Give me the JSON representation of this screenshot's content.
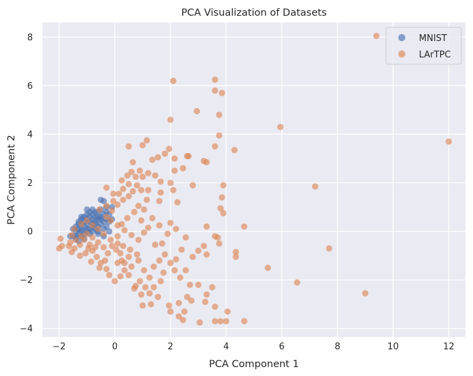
{
  "chart_data": {
    "type": "scatter",
    "title": "PCA Visualization of Datasets",
    "xlabel": "PCA Component 1",
    "ylabel": "PCA Component 2",
    "xlim": [
      -2.6,
      12.6
    ],
    "ylim": [
      -4.35,
      8.6
    ],
    "xticks": [
      -2,
      0,
      2,
      4,
      6,
      8,
      10,
      12
    ],
    "yticks": [
      -4,
      -2,
      0,
      2,
      4,
      6,
      8
    ],
    "grid": true,
    "legend_position": "top-right",
    "series": [
      {
        "name": "MNIST",
        "color": "#4C72B0",
        "points": [
          [
            -1.5,
            0.1
          ],
          [
            -1.4,
            -0.2
          ],
          [
            -1.3,
            0.3
          ],
          [
            -1.2,
            0.5
          ],
          [
            -1.1,
            0.6
          ],
          [
            -1.0,
            0.7
          ],
          [
            -0.9,
            0.8
          ],
          [
            -0.8,
            0.9
          ],
          [
            -0.7,
            0.6
          ],
          [
            -0.6,
            0.5
          ],
          [
            -0.5,
            1.3
          ],
          [
            -0.4,
            1.25
          ],
          [
            -0.3,
            1.0
          ],
          [
            -0.2,
            0.7
          ],
          [
            -1.4,
            -0.3
          ],
          [
            -1.3,
            -0.1
          ],
          [
            -1.2,
            0.0
          ],
          [
            -1.1,
            0.2
          ],
          [
            -1.0,
            0.3
          ],
          [
            -0.9,
            0.4
          ],
          [
            -0.8,
            0.2
          ],
          [
            -0.7,
            0.1
          ],
          [
            -0.6,
            0.0
          ],
          [
            -0.5,
            0.3
          ],
          [
            -0.4,
            0.4
          ],
          [
            -1.3,
            0.4
          ],
          [
            -1.2,
            0.1
          ],
          [
            -1.1,
            -0.1
          ],
          [
            -1.0,
            0.0
          ],
          [
            -0.9,
            0.1
          ],
          [
            -0.8,
            0.5
          ],
          [
            -0.7,
            0.4
          ],
          [
            -0.6,
            0.2
          ],
          [
            -0.5,
            0.6
          ],
          [
            -0.4,
            0.7
          ],
          [
            -1.5,
            -0.2
          ],
          [
            -1.4,
            0.2
          ],
          [
            -1.2,
            0.6
          ],
          [
            -1.0,
            0.5
          ],
          [
            -0.8,
            0.7
          ],
          [
            -0.7,
            0.8
          ],
          [
            -0.6,
            0.8
          ],
          [
            -0.5,
            0.9
          ],
          [
            -0.3,
            0.8
          ],
          [
            -0.2,
            0.4
          ],
          [
            -0.1,
            1.0
          ],
          [
            -0.1,
            0.5
          ],
          [
            -0.9,
            -0.1
          ],
          [
            -1.1,
            -0.3
          ],
          [
            -1.3,
            -0.4
          ],
          [
            -1.6,
            -0.2
          ],
          [
            -1.0,
            0.9
          ],
          [
            -0.4,
            0.1
          ],
          [
            -0.3,
            0.2
          ],
          [
            -0.2,
            0.0
          ],
          [
            -1.2,
            -0.2
          ],
          [
            -0.8,
            0.0
          ],
          [
            -0.6,
            -0.1
          ],
          [
            -0.4,
            -0.2
          ],
          [
            -0.9,
            0.6
          ],
          [
            -1.1,
            0.4
          ],
          [
            -1.3,
            0.1
          ],
          [
            -0.5,
            0.5
          ],
          [
            -0.3,
            0.5
          ],
          [
            -0.7,
            0.3
          ],
          [
            -1.4,
            0.0
          ],
          [
            -1.0,
            0.1
          ],
          [
            -0.6,
            0.6
          ],
          [
            -0.8,
            0.3
          ],
          [
            -1.2,
            0.3
          ]
        ]
      },
      {
        "name": "LArTPC",
        "color": "#DD8452",
        "points": [
          [
            9.4,
            8.05
          ],
          [
            12.0,
            3.7
          ],
          [
            5.95,
            4.3
          ],
          [
            7.2,
            1.85
          ],
          [
            7.7,
            -0.7
          ],
          [
            9.0,
            -2.55
          ],
          [
            6.55,
            -2.1
          ],
          [
            5.5,
            -1.5
          ],
          [
            4.35,
            -0.85
          ],
          [
            4.35,
            -1.05
          ],
          [
            4.65,
            0.2
          ],
          [
            4.3,
            3.35
          ],
          [
            4.05,
            -3.3
          ],
          [
            4.0,
            -3.7
          ],
          [
            3.8,
            -3.7
          ],
          [
            3.6,
            -3.7
          ],
          [
            4.65,
            -3.7
          ],
          [
            3.05,
            -3.75
          ],
          [
            2.1,
            6.2
          ],
          [
            3.6,
            6.25
          ],
          [
            3.6,
            5.8
          ],
          [
            3.85,
            5.7
          ],
          [
            3.75,
            4.8
          ],
          [
            2.95,
            4.95
          ],
          [
            2.0,
            4.6
          ],
          [
            3.75,
            3.95
          ],
          [
            3.6,
            3.5
          ],
          [
            3.2,
            2.9
          ],
          [
            3.3,
            2.85
          ],
          [
            2.6,
            3.1
          ],
          [
            2.65,
            3.1
          ],
          [
            2.45,
            2.6
          ],
          [
            2.8,
            1.9
          ],
          [
            3.9,
            1.9
          ],
          [
            3.85,
            1.4
          ],
          [
            3.8,
            0.95
          ],
          [
            3.9,
            0.75
          ],
          [
            3.3,
            0.2
          ],
          [
            3.6,
            -0.2
          ],
          [
            3.7,
            -0.25
          ],
          [
            3.75,
            -0.5
          ],
          [
            3.2,
            -0.6
          ],
          [
            3.0,
            -0.8
          ],
          [
            2.8,
            -1.05
          ],
          [
            3.3,
            -0.95
          ],
          [
            2.55,
            -1.6
          ],
          [
            3.0,
            -2.2
          ],
          [
            3.5,
            -2.3
          ],
          [
            3.3,
            -2.6
          ],
          [
            3.25,
            -2.9
          ],
          [
            3.6,
            -3.1
          ],
          [
            2.75,
            -2.85
          ],
          [
            2.5,
            -3.3
          ],
          [
            2.45,
            -3.65
          ],
          [
            2.3,
            -3.5
          ],
          [
            2.0,
            -3.3
          ],
          [
            1.95,
            -3.05
          ],
          [
            2.3,
            -2.95
          ],
          [
            2.6,
            -2.7
          ],
          [
            2.7,
            -2.2
          ],
          [
            2.35,
            -1.9
          ],
          [
            2.15,
            -1.6
          ],
          [
            2.0,
            -1.3
          ],
          [
            2.2,
            -1.15
          ],
          [
            2.4,
            -0.75
          ],
          [
            2.55,
            -0.25
          ],
          [
            2.2,
            0.1
          ],
          [
            2.0,
            0.35
          ],
          [
            2.25,
            1.2
          ],
          [
            2.1,
            1.7
          ],
          [
            2.0,
            2.0
          ],
          [
            2.15,
            2.5
          ],
          [
            2.15,
            3.0
          ],
          [
            1.95,
            3.4
          ],
          [
            1.8,
            3.2
          ],
          [
            1.55,
            3.05
          ],
          [
            1.35,
            2.95
          ],
          [
            1.0,
            3.55
          ],
          [
            0.5,
            3.5
          ],
          [
            1.15,
            3.75
          ],
          [
            0.6,
            2.45
          ],
          [
            0.9,
            2.5
          ],
          [
            1.2,
            2.4
          ],
          [
            1.45,
            2.3
          ],
          [
            1.65,
            2.05
          ],
          [
            1.65,
            1.6
          ],
          [
            1.2,
            1.7
          ],
          [
            0.95,
            1.7
          ],
          [
            1.15,
            1.3
          ],
          [
            1.6,
            1.25
          ],
          [
            0.85,
            1.05
          ],
          [
            1.05,
            0.9
          ],
          [
            1.35,
            0.55
          ],
          [
            1.6,
            0.25
          ],
          [
            1.9,
            -0.1
          ],
          [
            1.7,
            -0.5
          ],
          [
            1.45,
            -0.55
          ],
          [
            1.8,
            -0.95
          ],
          [
            1.6,
            -1.2
          ],
          [
            1.4,
            -1.45
          ],
          [
            1.75,
            -1.7
          ],
          [
            1.65,
            -2.05
          ],
          [
            1.4,
            -2.3
          ],
          [
            1.1,
            -2.3
          ],
          [
            0.9,
            -2.05
          ],
          [
            0.75,
            -2.25
          ],
          [
            0.95,
            -2.6
          ],
          [
            1.25,
            -2.55
          ],
          [
            1.55,
            -2.7
          ],
          [
            1.3,
            -3.0
          ],
          [
            1.0,
            -3.05
          ],
          [
            0.7,
            -2.35
          ],
          [
            0.5,
            -1.8
          ],
          [
            0.35,
            -1.6
          ],
          [
            0.2,
            -1.85
          ],
          [
            0.0,
            -2.05
          ],
          [
            -0.2,
            -1.8
          ],
          [
            -0.3,
            -1.55
          ],
          [
            -0.5,
            -1.3
          ],
          [
            -0.65,
            -1.05
          ],
          [
            -0.8,
            -0.8
          ],
          [
            -0.9,
            -0.55
          ],
          [
            -1.1,
            -0.35
          ],
          [
            -1.25,
            -0.55
          ],
          [
            -1.45,
            -0.7
          ],
          [
            -1.65,
            -0.6
          ],
          [
            -1.9,
            -0.6
          ],
          [
            -2.0,
            -0.7
          ],
          [
            -1.95,
            -0.3
          ],
          [
            -1.6,
            -0.45
          ],
          [
            -1.4,
            -0.35
          ],
          [
            -1.2,
            -0.2
          ],
          [
            -1.0,
            -0.1
          ],
          [
            -0.8,
            -0.25
          ],
          [
            -0.6,
            -0.45
          ],
          [
            -0.4,
            -0.65
          ],
          [
            -0.25,
            -0.9
          ],
          [
            0.1,
            -1.3
          ],
          [
            0.35,
            -1.3
          ],
          [
            0.6,
            -1.45
          ],
          [
            0.85,
            -1.2
          ],
          [
            1.05,
            -1.6
          ],
          [
            1.25,
            -1.9
          ],
          [
            0.8,
            -0.95
          ],
          [
            0.55,
            -0.75
          ],
          [
            0.3,
            -0.6
          ],
          [
            0.1,
            -0.5
          ],
          [
            -0.15,
            -0.35
          ],
          [
            -0.4,
            -0.1
          ],
          [
            -0.6,
            0.1
          ],
          [
            -0.8,
            0.25
          ],
          [
            -1.0,
            0.45
          ],
          [
            -1.2,
            0.3
          ],
          [
            -1.45,
            0.1
          ],
          [
            -1.55,
            -0.15
          ],
          [
            -0.3,
            0.6
          ],
          [
            -0.1,
            0.85
          ],
          [
            0.1,
            1.1
          ],
          [
            0.3,
            1.3
          ],
          [
            0.5,
            1.45
          ],
          [
            0.65,
            1.65
          ],
          [
            0.8,
            1.9
          ],
          [
            0.5,
            1.95
          ],
          [
            0.3,
            1.75
          ],
          [
            0.15,
            1.55
          ],
          [
            -0.05,
            1.25
          ],
          [
            -0.3,
            1.05
          ],
          [
            -0.55,
            0.9
          ],
          [
            -0.3,
            1.8
          ],
          [
            -0.05,
            1.55
          ],
          [
            0.25,
            2.1
          ],
          [
            0.45,
            2.3
          ],
          [
            0.75,
            2.25
          ],
          [
            1.0,
            2.25
          ],
          [
            0.65,
            2.85
          ],
          [
            0.25,
            0.3
          ],
          [
            0.45,
            0.55
          ],
          [
            0.7,
            0.8
          ],
          [
            0.95,
            0.45
          ],
          [
            1.2,
            0.15
          ],
          [
            0.6,
            -0.15
          ],
          [
            0.85,
            -0.35
          ],
          [
            1.05,
            -0.05
          ],
          [
            0.35,
            0.05
          ],
          [
            0.1,
            0.25
          ],
          [
            -0.15,
            0.45
          ],
          [
            0.1,
            -0.2
          ],
          [
            -0.1,
            -0.6
          ],
          [
            0.2,
            -0.9
          ],
          [
            0.5,
            -1.05
          ],
          [
            -0.35,
            -1.2
          ],
          [
            -0.55,
            -1.5
          ],
          [
            -0.85,
            -1.25
          ],
          [
            -1.05,
            -0.9
          ],
          [
            -1.25,
            -1.0
          ],
          [
            -1.55,
            -0.85
          ],
          [
            0.05,
            -0.75
          ],
          [
            0.25,
            -1.2
          ],
          [
            -0.7,
            -0.65
          ],
          [
            -0.95,
            -0.7
          ]
        ]
      }
    ]
  }
}
